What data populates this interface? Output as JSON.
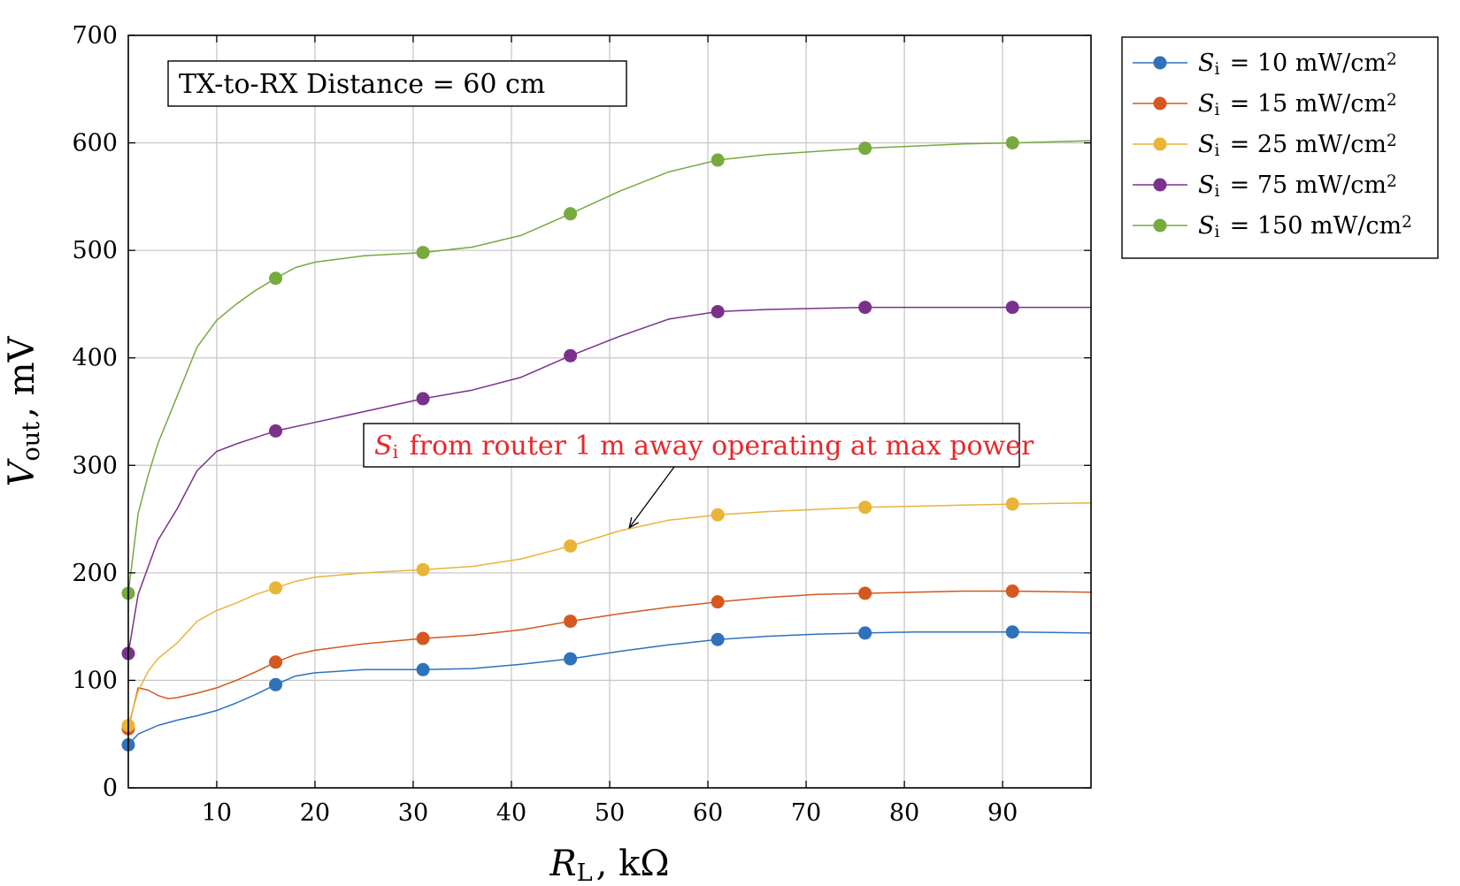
{
  "chart_data": {
    "type": "line",
    "xlabel": "R_L, kΩ",
    "ylabel": "V_out, mV",
    "xlim": [
      1,
      99
    ],
    "ylim": [
      0,
      700
    ],
    "xticks": [
      10,
      20,
      30,
      40,
      50,
      60,
      70,
      80,
      90
    ],
    "yticks": [
      0,
      100,
      200,
      300,
      400,
      500,
      600,
      700
    ],
    "grid": true,
    "legend_position": "outside-top-right",
    "annotation_box": "TX-to-RX Distance = 60 cm",
    "arrow_annotation": {
      "text": "S_i from router 1 m away operating at max power",
      "color": "#e8282b",
      "points_to": [
        52,
        242
      ]
    },
    "series": [
      {
        "name": "S_i = 10 mW/cm^2",
        "color": "#2e72bb",
        "markers": [
          [
            1,
            40
          ],
          [
            16,
            96
          ],
          [
            31,
            110
          ],
          [
            46,
            120
          ],
          [
            61,
            138
          ],
          [
            76,
            144
          ],
          [
            91,
            145
          ]
        ],
        "curve": [
          [
            1,
            40
          ],
          [
            2,
            50
          ],
          [
            4,
            58
          ],
          [
            6,
            63
          ],
          [
            8,
            67
          ],
          [
            10,
            72
          ],
          [
            12,
            79
          ],
          [
            14,
            87
          ],
          [
            16,
            96
          ],
          [
            18,
            104
          ],
          [
            20,
            107
          ],
          [
            25,
            110
          ],
          [
            31,
            110
          ],
          [
            36,
            111
          ],
          [
            41,
            115
          ],
          [
            46,
            120
          ],
          [
            51,
            127
          ],
          [
            56,
            133
          ],
          [
            61,
            138
          ],
          [
            66,
            141
          ],
          [
            71,
            143
          ],
          [
            76,
            144
          ],
          [
            81,
            145
          ],
          [
            86,
            145
          ],
          [
            91,
            145
          ],
          [
            95,
            144.5
          ],
          [
            99,
            144
          ]
        ]
      },
      {
        "name": "S_i = 15 mW/cm^2",
        "color": "#d4581f",
        "markers": [
          [
            1,
            55
          ],
          [
            16,
            117
          ],
          [
            31,
            139
          ],
          [
            46,
            155
          ],
          [
            61,
            173
          ],
          [
            76,
            181
          ],
          [
            91,
            183
          ]
        ],
        "curve": [
          [
            1,
            55
          ],
          [
            2,
            93
          ],
          [
            3,
            91
          ],
          [
            4,
            86
          ],
          [
            5,
            83
          ],
          [
            6,
            84
          ],
          [
            8,
            88
          ],
          [
            10,
            93
          ],
          [
            12,
            100
          ],
          [
            14,
            108
          ],
          [
            16,
            117
          ],
          [
            18,
            124
          ],
          [
            20,
            128
          ],
          [
            25,
            134
          ],
          [
            31,
            139
          ],
          [
            36,
            142
          ],
          [
            41,
            147
          ],
          [
            46,
            155
          ],
          [
            51,
            162
          ],
          [
            56,
            168
          ],
          [
            61,
            173
          ],
          [
            66,
            177
          ],
          [
            71,
            180
          ],
          [
            76,
            181
          ],
          [
            81,
            182
          ],
          [
            86,
            183
          ],
          [
            91,
            183
          ],
          [
            95,
            182.5
          ],
          [
            99,
            182
          ]
        ]
      },
      {
        "name": "S_i = 25 mW/cm^2",
        "color": "#e9b43a",
        "markers": [
          [
            1,
            58
          ],
          [
            16,
            186
          ],
          [
            31,
            203
          ],
          [
            46,
            225
          ],
          [
            61,
            254
          ],
          [
            76,
            261
          ],
          [
            91,
            264
          ]
        ],
        "curve": [
          [
            1,
            58
          ],
          [
            2,
            90
          ],
          [
            3,
            108
          ],
          [
            4,
            120
          ],
          [
            6,
            135
          ],
          [
            8,
            155
          ],
          [
            10,
            165
          ],
          [
            12,
            172
          ],
          [
            14,
            180
          ],
          [
            16,
            186
          ],
          [
            18,
            192
          ],
          [
            20,
            196
          ],
          [
            25,
            200
          ],
          [
            31,
            203
          ],
          [
            36,
            206
          ],
          [
            41,
            213
          ],
          [
            46,
            225
          ],
          [
            51,
            239
          ],
          [
            56,
            249
          ],
          [
            61,
            254
          ],
          [
            66,
            257
          ],
          [
            71,
            259
          ],
          [
            76,
            261
          ],
          [
            81,
            262
          ],
          [
            86,
            263
          ],
          [
            91,
            264
          ],
          [
            95,
            264.5
          ],
          [
            99,
            265
          ]
        ]
      },
      {
        "name": "S_i = 75 mW/cm^2",
        "color": "#7a318c",
        "markers": [
          [
            1,
            125
          ],
          [
            16,
            332
          ],
          [
            31,
            362
          ],
          [
            46,
            402
          ],
          [
            61,
            443
          ],
          [
            76,
            447
          ],
          [
            91,
            447
          ]
        ],
        "curve": [
          [
            1,
            125
          ],
          [
            2,
            180
          ],
          [
            4,
            230
          ],
          [
            6,
            260
          ],
          [
            8,
            295
          ],
          [
            10,
            313
          ],
          [
            12,
            320
          ],
          [
            14,
            326
          ],
          [
            16,
            332
          ],
          [
            20,
            340
          ],
          [
            25,
            350
          ],
          [
            31,
            362
          ],
          [
            36,
            370
          ],
          [
            41,
            382
          ],
          [
            46,
            402
          ],
          [
            51,
            420
          ],
          [
            56,
            436
          ],
          [
            61,
            443
          ],
          [
            66,
            445
          ],
          [
            71,
            446
          ],
          [
            76,
            447
          ],
          [
            81,
            447
          ],
          [
            86,
            447
          ],
          [
            91,
            447
          ],
          [
            95,
            447
          ],
          [
            99,
            447
          ]
        ]
      },
      {
        "name": "S_i = 150 mW/cm^2",
        "color": "#77aa3f",
        "markers": [
          [
            1,
            181
          ],
          [
            16,
            474
          ],
          [
            31,
            498
          ],
          [
            46,
            534
          ],
          [
            61,
            584
          ],
          [
            76,
            595
          ],
          [
            91,
            600
          ]
        ],
        "curve": [
          [
            1,
            181
          ],
          [
            2,
            255
          ],
          [
            3,
            290
          ],
          [
            4,
            320
          ],
          [
            6,
            365
          ],
          [
            8,
            410
          ],
          [
            10,
            435
          ],
          [
            12,
            450
          ],
          [
            14,
            463
          ],
          [
            16,
            474
          ],
          [
            18,
            484
          ],
          [
            20,
            489
          ],
          [
            25,
            495
          ],
          [
            31,
            498
          ],
          [
            36,
            503
          ],
          [
            41,
            514
          ],
          [
            46,
            534
          ],
          [
            51,
            555
          ],
          [
            56,
            573
          ],
          [
            61,
            584
          ],
          [
            66,
            589
          ],
          [
            71,
            592
          ],
          [
            76,
            595
          ],
          [
            81,
            597
          ],
          [
            86,
            599
          ],
          [
            91,
            600
          ],
          [
            95,
            601
          ],
          [
            99,
            602
          ]
        ]
      }
    ]
  }
}
